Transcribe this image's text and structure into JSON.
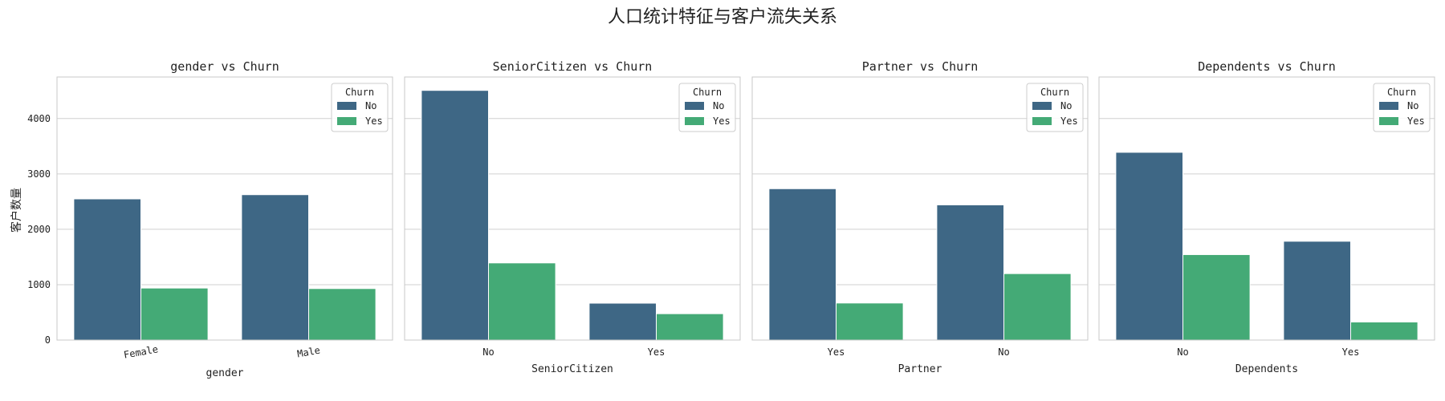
{
  "suptitle": "人口统计特征与客户流失关系",
  "ylabel": "客户数量",
  "colors": {
    "No": "#3e6785",
    "Yes": "#44aa76",
    "grid": "#d0d0d0",
    "frame": "#c8c8c8"
  },
  "yticks": [
    "0",
    "1000",
    "2000",
    "3000",
    "4000"
  ],
  "legend_title": "Churn",
  "legend_labels": [
    "No",
    "Yes"
  ],
  "chart_data": [
    {
      "type": "bar",
      "title": "gender vs Churn",
      "xlabel": "gender",
      "categories": [
        "Female",
        "Male"
      ],
      "x_tick_rotation": 10,
      "series": [
        {
          "name": "No",
          "values": [
            2549,
            2625
          ]
        },
        {
          "name": "Yes",
          "values": [
            939,
            930
          ]
        }
      ],
      "ylim": [
        0,
        4750
      ],
      "grid": true,
      "legend": "top-right"
    },
    {
      "type": "bar",
      "title": "SeniorCitizen vs Churn",
      "xlabel": "SeniorCitizen",
      "categories": [
        "No",
        "Yes"
      ],
      "series": [
        {
          "name": "No",
          "values": [
            4508,
            666
          ]
        },
        {
          "name": "Yes",
          "values": [
            1393,
            476
          ]
        }
      ],
      "ylim": [
        0,
        4750
      ],
      "grid": true,
      "legend": "top-right"
    },
    {
      "type": "bar",
      "title": "Partner vs Churn",
      "xlabel": "Partner",
      "categories": [
        "Yes",
        "No"
      ],
      "series": [
        {
          "name": "No",
          "values": [
            2733,
            2441
          ]
        },
        {
          "name": "Yes",
          "values": [
            669,
            1200
          ]
        }
      ],
      "ylim": [
        0,
        4750
      ],
      "grid": true,
      "legend": "top-right"
    },
    {
      "type": "bar",
      "title": "Dependents vs Churn",
      "xlabel": "Dependents",
      "categories": [
        "No",
        "Yes"
      ],
      "series": [
        {
          "name": "No",
          "values": [
            3390,
            1784
          ]
        },
        {
          "name": "Yes",
          "values": [
            1543,
            326
          ]
        }
      ],
      "ylim": [
        0,
        4750
      ],
      "grid": true,
      "legend": "top-right"
    }
  ]
}
